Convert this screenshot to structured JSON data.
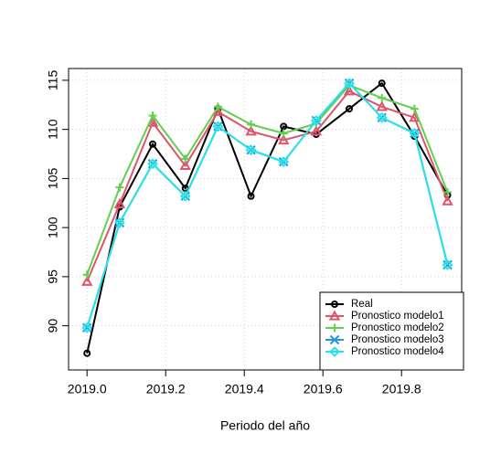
{
  "chart_data": {
    "type": "line",
    "xlabel": "Periodo del año",
    "x": [
      2019,
      2019.083,
      2019.167,
      2019.25,
      2019.333,
      2019.417,
      2019.5,
      2019.583,
      2019.667,
      2019.75,
      2019.833,
      2019.917
    ],
    "series": [
      {
        "name": "Real",
        "color": "#000000",
        "marker": "circle",
        "values": [
          87.2,
          102.1,
          108.5,
          104.0,
          112.1,
          103.2,
          110.3,
          109.5,
          112.1,
          114.7,
          109.3,
          103.3
        ]
      },
      {
        "name": "Pronostico modelo1",
        "color": "#DF536B",
        "marker": "triangle",
        "values": [
          94.5,
          102.4,
          110.7,
          106.3,
          111.8,
          109.8,
          108.9,
          109.8,
          113.9,
          112.3,
          111.2,
          102.7
        ]
      },
      {
        "name": "Pronostico modelo2",
        "color": "#61D04F",
        "marker": "plus",
        "values": [
          95.2,
          104.1,
          111.4,
          107.0,
          112.3,
          110.5,
          109.6,
          110.6,
          114.5,
          113.2,
          112.1,
          103.6
        ]
      },
      {
        "name": "Pronostico modelo3",
        "color": "#2297E6",
        "marker": "cross",
        "values": [
          89.8,
          100.5,
          106.5,
          103.2,
          110.3,
          107.9,
          106.7,
          110.9,
          114.7,
          111.2,
          109.6,
          96.2
        ]
      },
      {
        "name": "Pronostico modelo4",
        "color": "#28E2E5",
        "marker": "diamond",
        "values": [
          89.8,
          100.5,
          106.5,
          103.2,
          110.3,
          107.9,
          106.7,
          110.9,
          114.7,
          111.2,
          109.6,
          96.2
        ]
      }
    ],
    "xlim": [
      2018.953,
      2019.953
    ],
    "ylim": [
      85.5,
      116.2
    ],
    "xticks": [
      {
        "value": 2019.0,
        "label": "2019.0"
      },
      {
        "value": 2019.2,
        "label": "2019.2"
      },
      {
        "value": 2019.4,
        "label": "2019.4"
      },
      {
        "value": 2019.6,
        "label": "2019.6"
      },
      {
        "value": 2019.8,
        "label": "2019.8"
      }
    ],
    "yticks": [
      90,
      95,
      100,
      105,
      110,
      115
    ],
    "grid": true,
    "legend": "bottom-right"
  }
}
